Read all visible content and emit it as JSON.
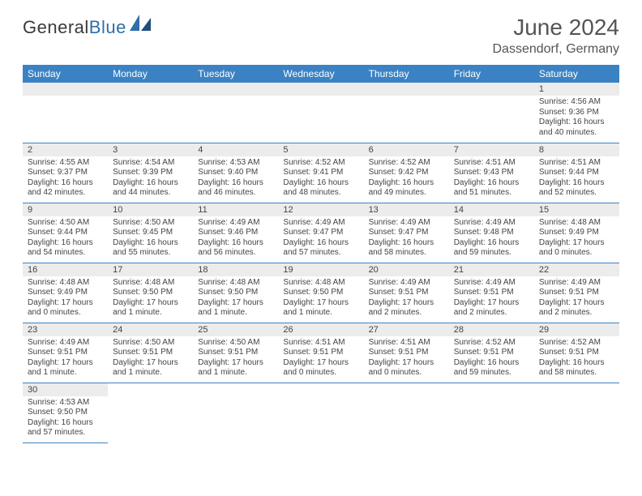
{
  "brand": {
    "part1": "General",
    "part2": "Blue"
  },
  "title": "June 2024",
  "location": "Dassendorf, Germany",
  "colors": {
    "header_bg": "#3b82c4",
    "header_fg": "#ffffff",
    "daynum_bg": "#ececec",
    "text": "#444444",
    "row_divider": "#3b82c4",
    "page_bg": "#ffffff"
  },
  "typography": {
    "title_fontsize": 28,
    "subtitle_fontsize": 16,
    "dayheader_fontsize": 12,
    "daynum_fontsize": 11,
    "cell_fontsize": 10
  },
  "day_headers": [
    "Sunday",
    "Monday",
    "Tuesday",
    "Wednesday",
    "Thursday",
    "Friday",
    "Saturday"
  ],
  "weeks": [
    [
      null,
      null,
      null,
      null,
      null,
      null,
      {
        "n": "1",
        "sr": "Sunrise: 4:56 AM",
        "ss": "Sunset: 9:36 PM",
        "dl": "Daylight: 16 hours and 40 minutes."
      }
    ],
    [
      {
        "n": "2",
        "sr": "Sunrise: 4:55 AM",
        "ss": "Sunset: 9:37 PM",
        "dl": "Daylight: 16 hours and 42 minutes."
      },
      {
        "n": "3",
        "sr": "Sunrise: 4:54 AM",
        "ss": "Sunset: 9:39 PM",
        "dl": "Daylight: 16 hours and 44 minutes."
      },
      {
        "n": "4",
        "sr": "Sunrise: 4:53 AM",
        "ss": "Sunset: 9:40 PM",
        "dl": "Daylight: 16 hours and 46 minutes."
      },
      {
        "n": "5",
        "sr": "Sunrise: 4:52 AM",
        "ss": "Sunset: 9:41 PM",
        "dl": "Daylight: 16 hours and 48 minutes."
      },
      {
        "n": "6",
        "sr": "Sunrise: 4:52 AM",
        "ss": "Sunset: 9:42 PM",
        "dl": "Daylight: 16 hours and 49 minutes."
      },
      {
        "n": "7",
        "sr": "Sunrise: 4:51 AM",
        "ss": "Sunset: 9:43 PM",
        "dl": "Daylight: 16 hours and 51 minutes."
      },
      {
        "n": "8",
        "sr": "Sunrise: 4:51 AM",
        "ss": "Sunset: 9:44 PM",
        "dl": "Daylight: 16 hours and 52 minutes."
      }
    ],
    [
      {
        "n": "9",
        "sr": "Sunrise: 4:50 AM",
        "ss": "Sunset: 9:44 PM",
        "dl": "Daylight: 16 hours and 54 minutes."
      },
      {
        "n": "10",
        "sr": "Sunrise: 4:50 AM",
        "ss": "Sunset: 9:45 PM",
        "dl": "Daylight: 16 hours and 55 minutes."
      },
      {
        "n": "11",
        "sr": "Sunrise: 4:49 AM",
        "ss": "Sunset: 9:46 PM",
        "dl": "Daylight: 16 hours and 56 minutes."
      },
      {
        "n": "12",
        "sr": "Sunrise: 4:49 AM",
        "ss": "Sunset: 9:47 PM",
        "dl": "Daylight: 16 hours and 57 minutes."
      },
      {
        "n": "13",
        "sr": "Sunrise: 4:49 AM",
        "ss": "Sunset: 9:47 PM",
        "dl": "Daylight: 16 hours and 58 minutes."
      },
      {
        "n": "14",
        "sr": "Sunrise: 4:49 AM",
        "ss": "Sunset: 9:48 PM",
        "dl": "Daylight: 16 hours and 59 minutes."
      },
      {
        "n": "15",
        "sr": "Sunrise: 4:48 AM",
        "ss": "Sunset: 9:49 PM",
        "dl": "Daylight: 17 hours and 0 minutes."
      }
    ],
    [
      {
        "n": "16",
        "sr": "Sunrise: 4:48 AM",
        "ss": "Sunset: 9:49 PM",
        "dl": "Daylight: 17 hours and 0 minutes."
      },
      {
        "n": "17",
        "sr": "Sunrise: 4:48 AM",
        "ss": "Sunset: 9:50 PM",
        "dl": "Daylight: 17 hours and 1 minute."
      },
      {
        "n": "18",
        "sr": "Sunrise: 4:48 AM",
        "ss": "Sunset: 9:50 PM",
        "dl": "Daylight: 17 hours and 1 minute."
      },
      {
        "n": "19",
        "sr": "Sunrise: 4:48 AM",
        "ss": "Sunset: 9:50 PM",
        "dl": "Daylight: 17 hours and 1 minute."
      },
      {
        "n": "20",
        "sr": "Sunrise: 4:49 AM",
        "ss": "Sunset: 9:51 PM",
        "dl": "Daylight: 17 hours and 2 minutes."
      },
      {
        "n": "21",
        "sr": "Sunrise: 4:49 AM",
        "ss": "Sunset: 9:51 PM",
        "dl": "Daylight: 17 hours and 2 minutes."
      },
      {
        "n": "22",
        "sr": "Sunrise: 4:49 AM",
        "ss": "Sunset: 9:51 PM",
        "dl": "Daylight: 17 hours and 2 minutes."
      }
    ],
    [
      {
        "n": "23",
        "sr": "Sunrise: 4:49 AM",
        "ss": "Sunset: 9:51 PM",
        "dl": "Daylight: 17 hours and 1 minute."
      },
      {
        "n": "24",
        "sr": "Sunrise: 4:50 AM",
        "ss": "Sunset: 9:51 PM",
        "dl": "Daylight: 17 hours and 1 minute."
      },
      {
        "n": "25",
        "sr": "Sunrise: 4:50 AM",
        "ss": "Sunset: 9:51 PM",
        "dl": "Daylight: 17 hours and 1 minute."
      },
      {
        "n": "26",
        "sr": "Sunrise: 4:51 AM",
        "ss": "Sunset: 9:51 PM",
        "dl": "Daylight: 17 hours and 0 minutes."
      },
      {
        "n": "27",
        "sr": "Sunrise: 4:51 AM",
        "ss": "Sunset: 9:51 PM",
        "dl": "Daylight: 17 hours and 0 minutes."
      },
      {
        "n": "28",
        "sr": "Sunrise: 4:52 AM",
        "ss": "Sunset: 9:51 PM",
        "dl": "Daylight: 16 hours and 59 minutes."
      },
      {
        "n": "29",
        "sr": "Sunrise: 4:52 AM",
        "ss": "Sunset: 9:51 PM",
        "dl": "Daylight: 16 hours and 58 minutes."
      }
    ],
    [
      {
        "n": "30",
        "sr": "Sunrise: 4:53 AM",
        "ss": "Sunset: 9:50 PM",
        "dl": "Daylight: 16 hours and 57 minutes."
      },
      null,
      null,
      null,
      null,
      null,
      null
    ]
  ]
}
